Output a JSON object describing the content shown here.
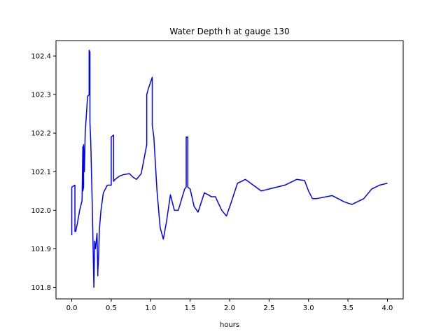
{
  "chart_data": {
    "type": "line",
    "title": "Water Depth h at gauge 130",
    "xlabel": "hours",
    "ylabel": "",
    "xlim": [
      -0.2,
      4.2
    ],
    "ylim": [
      101.77,
      102.44
    ],
    "xticks": [
      0.0,
      0.5,
      1.0,
      1.5,
      2.0,
      2.5,
      3.0,
      3.5,
      4.0
    ],
    "xtick_labels": [
      "0.0",
      "0.5",
      "1.0",
      "1.5",
      "2.0",
      "2.5",
      "3.0",
      "3.5",
      "4.0"
    ],
    "yticks": [
      101.8,
      101.9,
      102.0,
      102.1,
      102.2,
      102.3,
      102.4
    ],
    "ytick_labels": [
      "101.8",
      "101.9",
      "102.0",
      "102.1",
      "102.2",
      "102.3",
      "102.4"
    ],
    "grid": false,
    "series": [
      {
        "color": "#0000ff",
        "x": [
          0.0,
          0.0,
          0.04,
          0.04,
          0.05,
          0.07,
          0.1,
          0.13,
          0.14,
          0.14,
          0.15,
          0.15,
          0.16,
          0.17,
          0.2,
          0.22,
          0.22,
          0.23,
          0.23,
          0.24,
          0.26,
          0.28,
          0.29,
          0.3,
          0.31,
          0.32,
          0.33,
          0.33,
          0.34,
          0.35,
          0.37,
          0.4,
          0.45,
          0.5,
          0.5,
          0.53,
          0.53,
          0.55,
          0.6,
          0.65,
          0.73,
          0.78,
          0.82,
          0.88,
          0.95,
          0.95,
          0.97,
          1.02,
          1.02,
          1.04,
          1.08,
          1.12,
          1.16,
          1.2,
          1.25,
          1.3,
          1.35,
          1.43,
          1.45,
          1.45,
          1.47,
          1.47,
          1.5,
          1.55,
          1.6,
          1.68,
          1.73,
          1.77,
          1.82,
          1.9,
          1.96,
          2.02,
          2.1,
          2.2,
          2.3,
          2.4,
          2.5,
          2.6,
          2.7,
          2.8,
          2.85,
          2.95,
          3.0,
          3.05,
          3.1,
          3.3,
          3.45,
          3.55,
          3.6,
          3.7,
          3.8,
          3.9,
          4.0
        ],
        "y": [
          101.935,
          102.06,
          102.065,
          101.945,
          101.945,
          101.965,
          102.0,
          102.025,
          102.165,
          102.05,
          102.06,
          102.17,
          102.1,
          102.2,
          102.295,
          102.3,
          102.415,
          102.41,
          102.23,
          102.18,
          102.01,
          101.8,
          101.92,
          101.9,
          101.92,
          101.94,
          101.83,
          101.84,
          101.88,
          101.95,
          102.0,
          102.045,
          102.065,
          102.065,
          102.19,
          102.195,
          102.075,
          102.08,
          102.088,
          102.092,
          102.095,
          102.085,
          102.08,
          102.095,
          102.17,
          102.3,
          102.315,
          102.345,
          102.22,
          102.19,
          102.05,
          101.955,
          101.925,
          101.97,
          102.04,
          102.0,
          102.0,
          102.055,
          102.06,
          102.19,
          102.19,
          102.06,
          102.055,
          102.01,
          101.995,
          102.045,
          102.04,
          102.035,
          102.035,
          102.0,
          101.985,
          102.02,
          102.07,
          102.08,
          102.065,
          102.05,
          102.055,
          102.06,
          102.065,
          102.075,
          102.08,
          102.077,
          102.05,
          102.03,
          102.03,
          102.038,
          102.022,
          102.015,
          102.02,
          102.03,
          102.055,
          102.065,
          102.07
        ]
      }
    ]
  }
}
